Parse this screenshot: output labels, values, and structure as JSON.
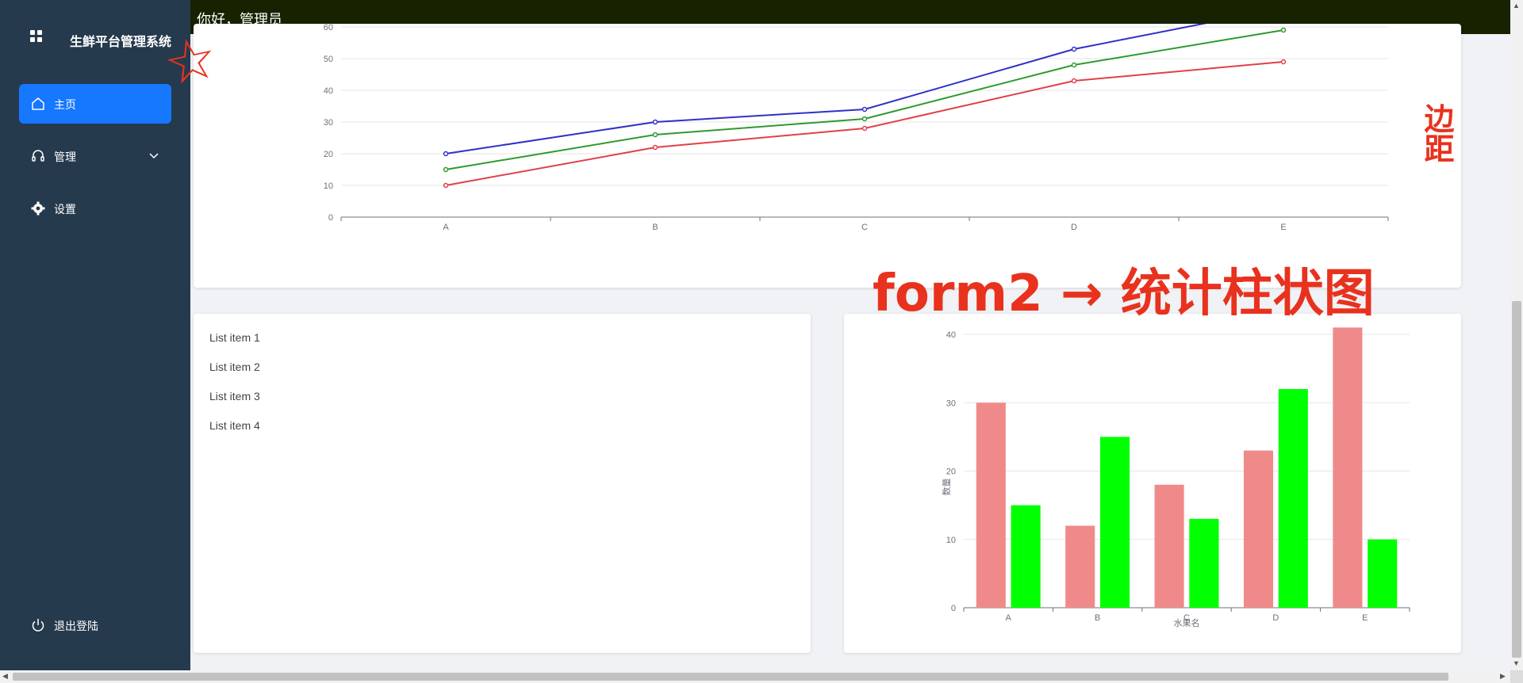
{
  "sidebar": {
    "brand": "生鲜平台管理系统",
    "items": [
      {
        "label": "主页",
        "icon": "home-icon",
        "active": true
      },
      {
        "label": "管理",
        "icon": "headset-icon",
        "active": false
      },
      {
        "label": "设置",
        "icon": "gear-icon",
        "active": false
      }
    ],
    "logout": "退出登陆"
  },
  "header": {
    "greeting": "你好，管理员"
  },
  "list_card": {
    "items": [
      "List item 1",
      "List item 2",
      "List item 3",
      "List item 4"
    ]
  },
  "annotations": {
    "star": "☆",
    "side_note": "边距",
    "arrow_note": "form2 → 统计柱状图"
  },
  "chart_data": [
    {
      "type": "line",
      "categories": [
        "A",
        "B",
        "C",
        "D",
        "E"
      ],
      "ylim": [
        0,
        60
      ],
      "yticks": [
        0,
        10,
        20,
        30,
        40,
        50,
        60
      ],
      "series": [
        {
          "values": [
            20,
            30,
            34,
            53,
            66
          ],
          "color": "#3030c8"
        },
        {
          "values": [
            15,
            26,
            31,
            48,
            59
          ],
          "color": "#2e9a2e"
        },
        {
          "values": [
            10,
            22,
            28,
            43,
            49
          ],
          "color": "#e0404a"
        }
      ],
      "grid": true
    },
    {
      "type": "bar",
      "categories": [
        "A",
        "B",
        "C",
        "D",
        "E"
      ],
      "ylabel": "数量",
      "xlabel": "水果名",
      "ylim": [
        0,
        40
      ],
      "yticks": [
        0,
        10,
        20,
        30,
        40
      ],
      "series": [
        {
          "values": [
            30,
            12,
            18,
            23,
            41
          ],
          "color": "#f08a8a"
        },
        {
          "values": [
            15,
            25,
            13,
            32,
            10
          ],
          "color": "#00ff00"
        }
      ],
      "grid": true
    }
  ]
}
